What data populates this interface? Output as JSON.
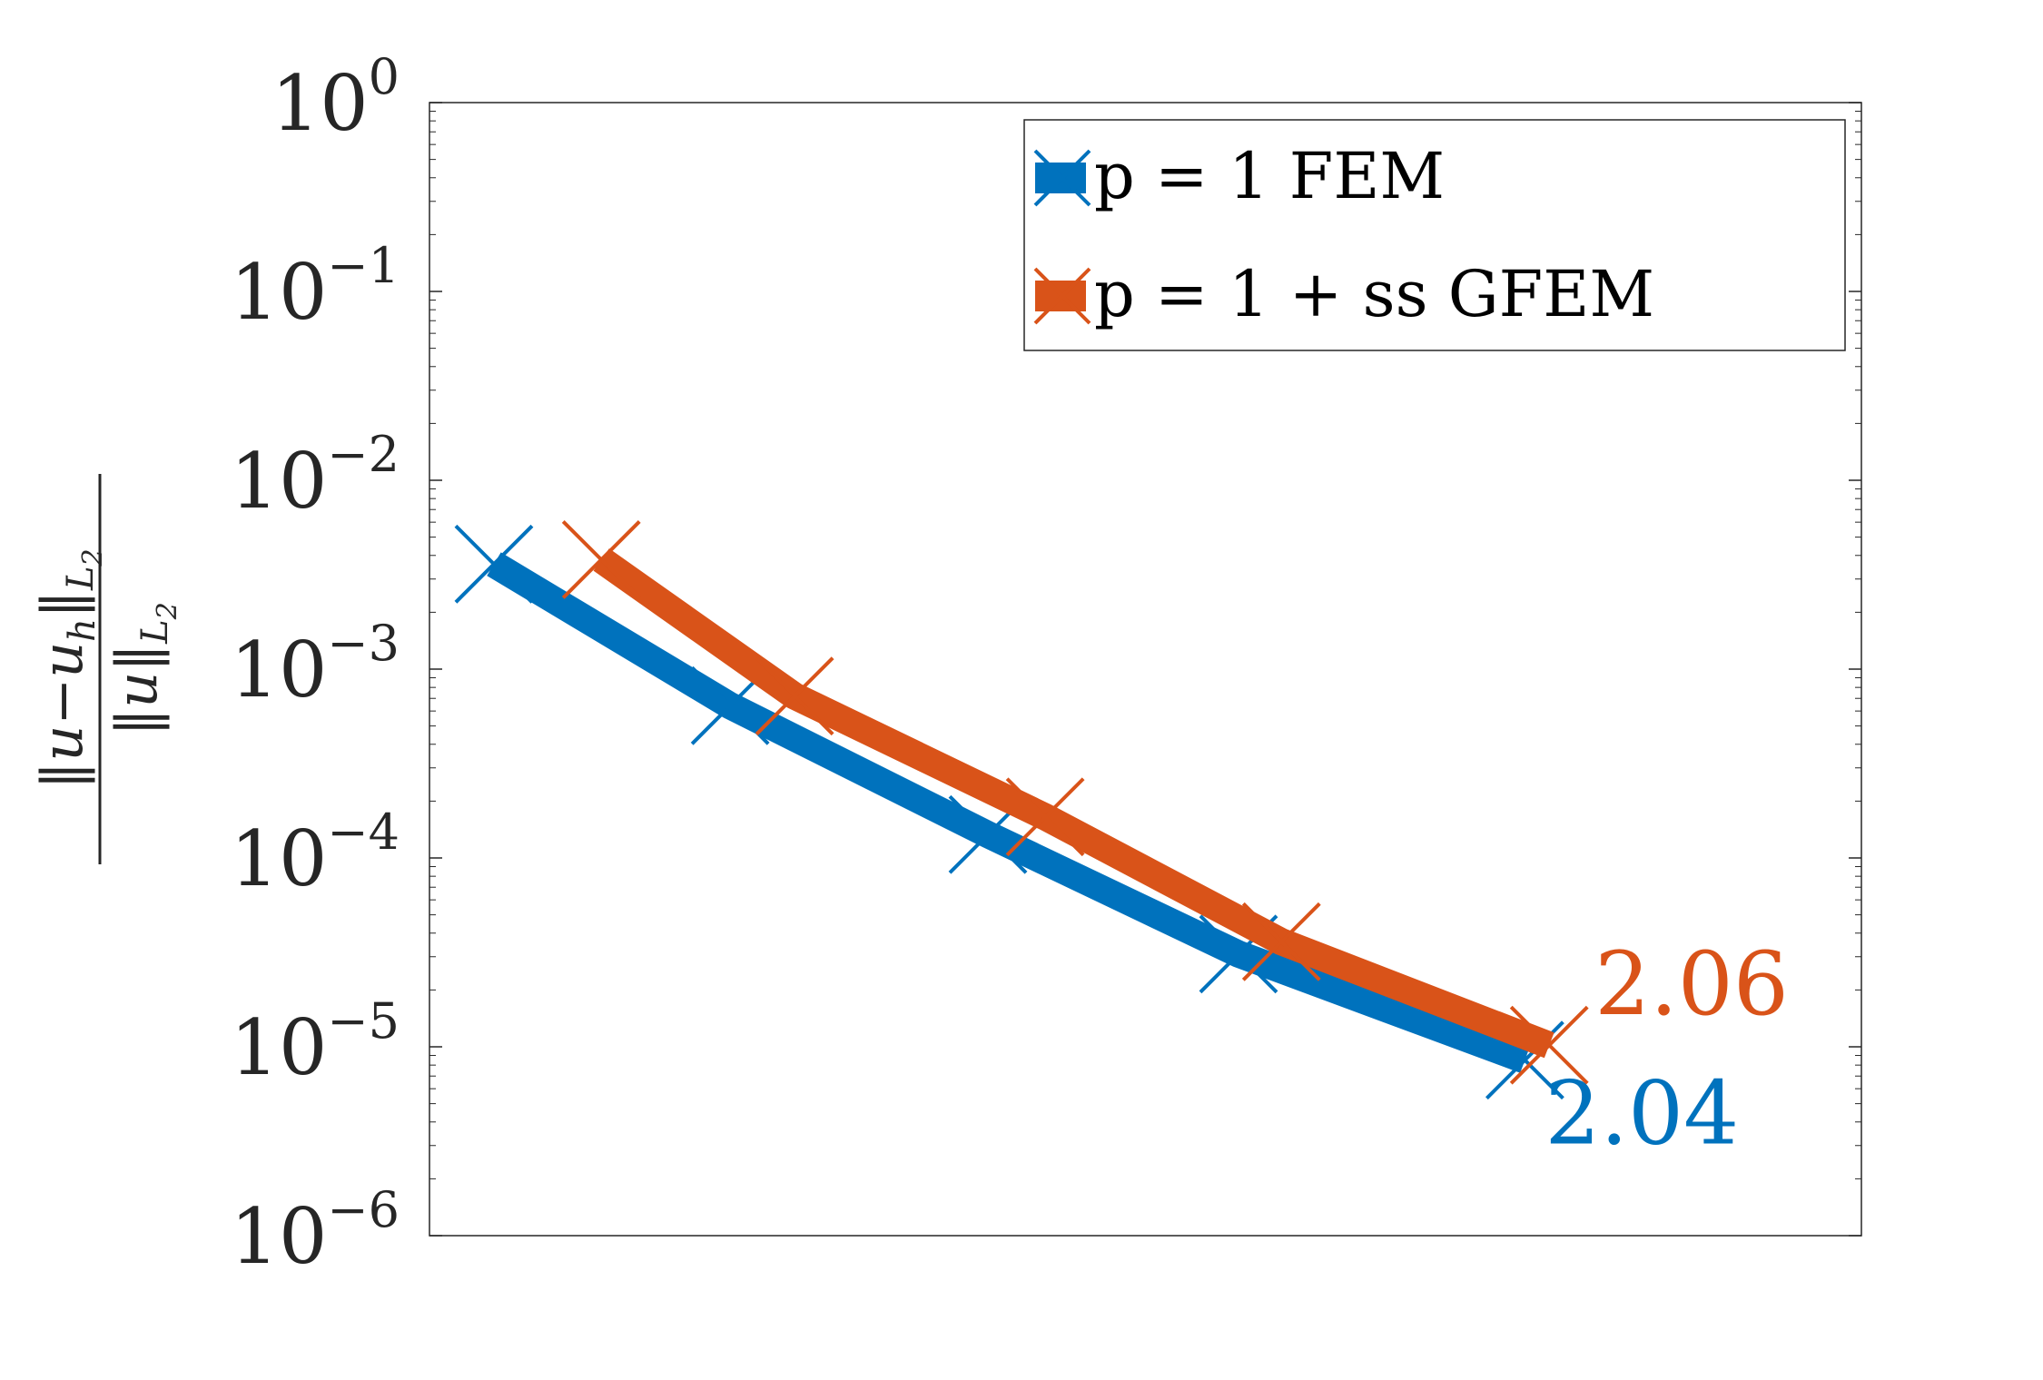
{
  "chart_data": {
    "type": "line",
    "yscale": "log",
    "ylim": [
      1e-06,
      1
    ],
    "yticks": [
      {
        "value": 1,
        "base": "10",
        "exp": "0"
      },
      {
        "value": 0.1,
        "base": "10",
        "exp": "−1"
      },
      {
        "value": 0.01,
        "base": "10",
        "exp": "−2"
      },
      {
        "value": 0.001,
        "base": "10",
        "exp": "−3"
      },
      {
        "value": 0.0001,
        "base": "10",
        "exp": "−4"
      },
      {
        "value": 1e-05,
        "base": "10",
        "exp": "−5"
      },
      {
        "value": 1e-06,
        "base": "10",
        "exp": "−6"
      }
    ],
    "ylabel": {
      "numerator": "‖u−u",
      "numerator_sub": "h",
      "numerator_tail": "‖",
      "numerator_norm": "L",
      "numerator_norm_sub": "2",
      "denominator": "‖u‖",
      "denominator_norm": "L",
      "denominator_norm_sub": "2"
    },
    "xlim": [
      0,
      1
    ],
    "grid": false,
    "legend_position": "top-right",
    "series": [
      {
        "name": "p = 1 FEM",
        "color": "#0072BD",
        "marker": "x",
        "x": [
          0.045,
          0.21,
          0.39,
          0.565,
          0.765
        ],
        "y": [
          0.0036,
          0.00064,
          0.000133,
          3.1e-05,
          8.5e-06
        ],
        "rate_label": "2.04"
      },
      {
        "name": "p = 1 + ss GFEM",
        "color": "#D95319",
        "marker": "x",
        "x": [
          0.12,
          0.255,
          0.43,
          0.595,
          0.782
        ],
        "y": [
          0.0038,
          0.00072,
          0.000165,
          3.6e-05,
          1.02e-05
        ],
        "rate_label": "2.06"
      }
    ]
  }
}
